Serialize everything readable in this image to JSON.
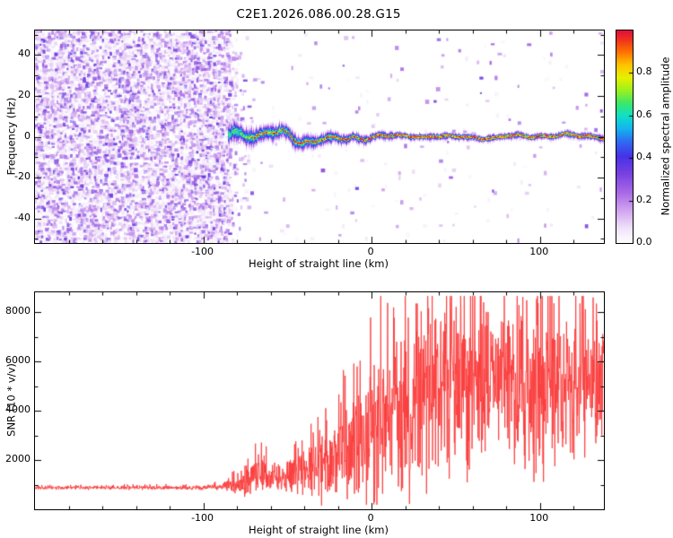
{
  "title": "C2E1.2026.086.00.28.G15",
  "chart_data": [
    {
      "id": "spectrogram",
      "type": "heatmap",
      "title": "C2E1.2026.086.00.28.G15",
      "xlabel": "Height of straight line (km)",
      "ylabel": "Frequency (Hz)",
      "xlim": [
        -200,
        138
      ],
      "ylim": [
        -52,
        52
      ],
      "x_major_ticks": [
        -100,
        0,
        100
      ],
      "x_minor_step": 20,
      "y_major_ticks": [
        -40,
        -20,
        0,
        20,
        40
      ],
      "y_minor_step": 10,
      "grid": false,
      "colorbar": {
        "label": "Normalized spectral amplitude",
        "ticks": [
          "0.0",
          "0.2",
          "0.4",
          "0.6",
          "0.8"
        ],
        "tick_values": [
          0,
          0.2,
          0.4,
          0.6,
          0.8
        ],
        "range": [
          0,
          1
        ]
      },
      "colormap": [
        [
          0.0,
          "#ffffff"
        ],
        [
          0.07,
          "#f0e4fa"
        ],
        [
          0.15,
          "#d4a8f0"
        ],
        [
          0.24,
          "#a968e6"
        ],
        [
          0.33,
          "#7741e0"
        ],
        [
          0.41,
          "#4732e6"
        ],
        [
          0.48,
          "#2e6cf2"
        ],
        [
          0.54,
          "#14b4ee"
        ],
        [
          0.6,
          "#0fe0c8"
        ],
        [
          0.66,
          "#3ce868"
        ],
        [
          0.72,
          "#9cf01e"
        ],
        [
          0.78,
          "#e8f000"
        ],
        [
          0.84,
          "#ffc400"
        ],
        [
          0.9,
          "#ff7300"
        ],
        [
          0.96,
          "#f03020"
        ],
        [
          1.0,
          "#e0103c"
        ]
      ],
      "noise_region": {
        "x_end_km": -86,
        "fade_end_km": -68,
        "coverage": 0.8,
        "sparse_coverage": 0.015,
        "amplitude_max": 0.36
      },
      "signal_band": {
        "onset_km": -85.5,
        "center_hz": 0,
        "wobble_hz_early": 3.8,
        "wobble_hz_late": 0.9,
        "halo_hz_early": 8,
        "halo_hz_late": 2.8,
        "core_width_hz": 0.85,
        "core_amplitude": 1.0,
        "early_blob_amplitude_cap": 0.72
      }
    },
    {
      "id": "snr",
      "type": "line",
      "xlabel": "Height of straight line (km)",
      "ylabel": "SNR (10 * v/v)",
      "xlim": [
        -200,
        138
      ],
      "ylim": [
        0,
        8800
      ],
      "x_major_ticks": [
        -100,
        0,
        100
      ],
      "x_minor_step": 20,
      "y_major_ticks": [
        2000,
        4000,
        6000,
        8000
      ],
      "y_minor_step": 1000,
      "grid": false,
      "line_color": "#fb3c3c",
      "envelope": {
        "x": [
          -200,
          -100,
          -88,
          -80,
          -72,
          -66,
          -60,
          -52,
          -45,
          -38,
          -30,
          -22,
          -15,
          -8,
          0,
          8,
          15,
          25,
          35,
          45,
          55,
          65,
          75,
          85,
          95,
          105,
          115,
          125,
          138
        ],
        "base": [
          880,
          880,
          950,
          1050,
          1250,
          1500,
          1300,
          1350,
          1500,
          1700,
          1900,
          2100,
          2400,
          2800,
          3200,
          3800,
          4300,
          4600,
          5000,
          5200,
          5000,
          5300,
          5500,
          5200,
          5000,
          5300,
          5500,
          5300,
          5100
        ],
        "spread": [
          60,
          70,
          120,
          300,
          550,
          700,
          450,
          500,
          650,
          900,
          1200,
          1500,
          1800,
          2100,
          2400,
          2700,
          2900,
          3000,
          2900,
          2900,
          3000,
          2700,
          2500,
          2400,
          2600,
          2800,
          2500,
          2300,
          2200
        ]
      }
    }
  ]
}
